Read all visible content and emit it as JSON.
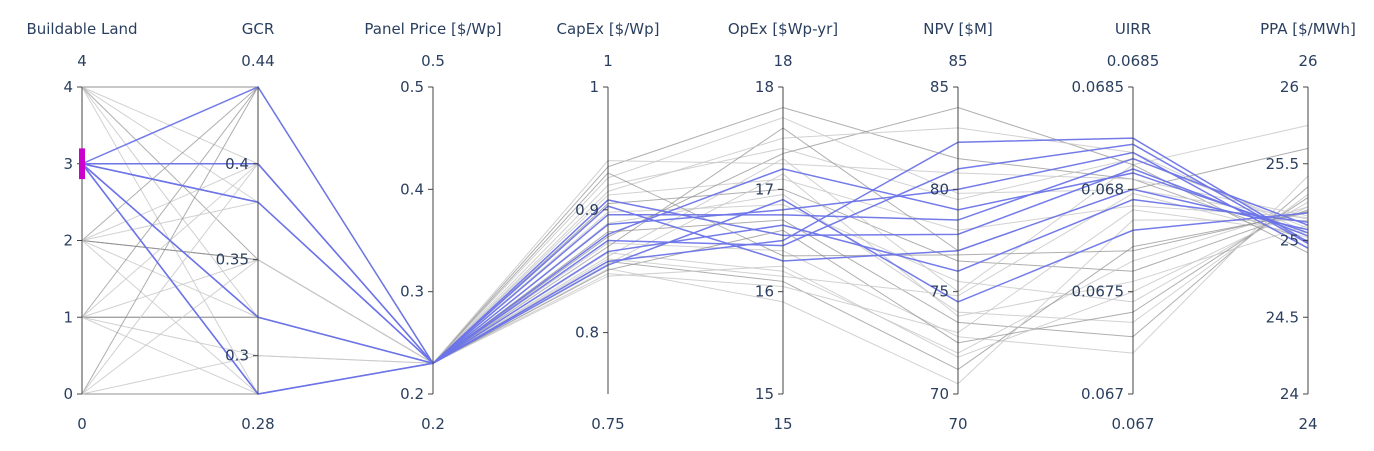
{
  "chart_data": {
    "type": "parallel_coordinates",
    "colors": {
      "selected": "#6b74e8",
      "unselected_light": "#c9c9c9",
      "unselected_dark": "#8c8c8c",
      "brush": "#cc00cc",
      "text": "#2a3f5f"
    },
    "dimensions": [
      {
        "id": "land",
        "label": "Buildable Land",
        "range": [
          0,
          4
        ],
        "range_labels": [
          "0",
          "4"
        ],
        "ticks": [
          0,
          1,
          2,
          3,
          4
        ],
        "tick_labels": [
          "0",
          "1",
          "2",
          "3",
          "4"
        ],
        "tick_side": "left",
        "brush": [
          2.8,
          3.2
        ]
      },
      {
        "id": "gcr",
        "label": "GCR",
        "range": [
          0.28,
          0.44
        ],
        "range_labels": [
          "0.28",
          "0.44"
        ],
        "ticks": [
          0.3,
          0.35,
          0.4
        ],
        "tick_labels": [
          "0.3",
          "0.35",
          "0.4"
        ],
        "tick_side": "left"
      },
      {
        "id": "price",
        "label": "Panel Price [$/Wp]",
        "range": [
          0.2,
          0.5
        ],
        "range_labels": [
          "0.2",
          "0.5"
        ],
        "ticks": [
          0.2,
          0.3,
          0.4,
          0.5
        ],
        "tick_labels": [
          "0.2",
          "0.3",
          "0.4",
          "0.5"
        ],
        "tick_side": "left"
      },
      {
        "id": "capex",
        "label": "CapEx [$/Wp]",
        "range": [
          0.75,
          1
        ],
        "range_labels": [
          "0.75",
          "1"
        ],
        "ticks": [
          0.8,
          0.9,
          1
        ],
        "tick_labels": [
          "0.8",
          "0.9",
          "1"
        ],
        "tick_side": "left"
      },
      {
        "id": "opex",
        "label": "OpEx [$Wp-yr]",
        "range": [
          15,
          18
        ],
        "range_labels": [
          "15",
          "18"
        ],
        "ticks": [
          15,
          16,
          17,
          18
        ],
        "tick_labels": [
          "15",
          "16",
          "17",
          "18"
        ],
        "tick_side": "left"
      },
      {
        "id": "npv",
        "label": "NPV [$M]",
        "range": [
          70,
          85
        ],
        "range_labels": [
          "70",
          "85"
        ],
        "ticks": [
          70,
          75,
          80,
          85
        ],
        "tick_labels": [
          "70",
          "75",
          "80",
          "85"
        ],
        "tick_side": "left"
      },
      {
        "id": "uirr",
        "label": "UIRR",
        "range": [
          0.067,
          0.0685
        ],
        "range_labels": [
          "0.067",
          "0.0685"
        ],
        "ticks": [
          0.067,
          0.0675,
          0.068,
          0.0685
        ],
        "tick_labels": [
          "0.067",
          "0.0675",
          "0.068",
          "0.0685"
        ],
        "tick_side": "left"
      },
      {
        "id": "ppa",
        "label": "PPA [$/MWh]",
        "range": [
          24,
          26
        ],
        "range_labels": [
          "24",
          "26"
        ],
        "ticks": [
          24,
          24.5,
          25,
          25.5,
          26
        ],
        "tick_labels": [
          "24",
          "24.5",
          "25",
          "25.5",
          "26"
        ],
        "tick_side": "left"
      }
    ],
    "lines": [
      {
        "values": [
          3,
          0.44,
          0.23,
          0.908,
          16.55,
          77.8,
          0.0681,
          25.03
        ],
        "selected": true
      },
      {
        "values": [
          3,
          0.4,
          0.23,
          0.903,
          16.3,
          77.0,
          0.068,
          25.07
        ],
        "selected": true
      },
      {
        "values": [
          3,
          0.38,
          0.23,
          0.896,
          16.75,
          78.5,
          0.06815,
          25.1
        ],
        "selected": true
      },
      {
        "values": [
          3,
          0.32,
          0.23,
          0.888,
          16.8,
          80.0,
          0.06818,
          24.95
        ],
        "selected": true
      },
      {
        "values": [
          3,
          0.28,
          0.23,
          0.875,
          16.45,
          81.0,
          0.06822,
          24.98
        ],
        "selected": true
      },
      {
        "values": [
          3,
          0.28,
          0.23,
          0.858,
          16.5,
          82.3,
          0.06825,
          24.99
        ],
        "selected": true
      },
      {
        "values": [
          3,
          0.32,
          0.23,
          0.866,
          16.65,
          76.0,
          0.06795,
          25.12
        ],
        "selected": true
      },
      {
        "values": [
          3,
          0.38,
          0.23,
          0.855,
          16.9,
          74.5,
          0.0678,
          25.18
        ],
        "selected": true
      },
      {
        "values": [
          3,
          0.4,
          0.23,
          0.88,
          17.2,
          79.0,
          0.06808,
          25.05
        ],
        "selected": true
      },
      {
        "values": [
          4,
          0.44,
          0.23,
          0.935,
          17.8,
          81.5,
          0.06805,
          25.0
        ],
        "selected": false
      },
      {
        "values": [
          4,
          0.4,
          0.23,
          0.92,
          17.4,
          79.5,
          0.06815,
          25.08
        ],
        "selected": false
      },
      {
        "values": [
          4,
          0.38,
          0.23,
          0.912,
          17.1,
          78.0,
          0.06792,
          25.15
        ],
        "selected": false
      },
      {
        "values": [
          4,
          0.35,
          0.23,
          0.905,
          17.0,
          76.5,
          0.0676,
          25.2
        ],
        "selected": false
      },
      {
        "values": [
          4,
          0.32,
          0.23,
          0.898,
          16.85,
          75.5,
          0.06745,
          25.25
        ],
        "selected": false
      },
      {
        "values": [
          4,
          0.28,
          0.23,
          0.889,
          16.95,
          74.0,
          0.06735,
          25.3
        ],
        "selected": false
      },
      {
        "values": [
          2,
          0.44,
          0.23,
          0.882,
          16.7,
          73.5,
          0.06728,
          25.35
        ],
        "selected": false
      },
      {
        "values": [
          2,
          0.4,
          0.23,
          0.873,
          16.4,
          72.8,
          0.0672,
          25.42
        ],
        "selected": false
      },
      {
        "values": [
          2,
          0.38,
          0.23,
          0.865,
          16.2,
          72.0,
          0.06765,
          25.22
        ],
        "selected": false
      },
      {
        "values": [
          2,
          0.35,
          0.23,
          0.858,
          16.1,
          71.2,
          0.06772,
          25.18
        ],
        "selected": false
      },
      {
        "values": [
          2,
          0.32,
          0.23,
          0.852,
          15.9,
          70.5,
          0.06785,
          25.13
        ],
        "selected": false
      },
      {
        "values": [
          2,
          0.28,
          0.23,
          0.848,
          16.05,
          73.0,
          0.0679,
          25.05
        ],
        "selected": false
      },
      {
        "values": [
          1,
          0.44,
          0.23,
          0.87,
          17.6,
          77.0,
          0.068,
          25.6
        ],
        "selected": false
      },
      {
        "values": [
          1,
          0.4,
          0.23,
          0.862,
          17.3,
          75.0,
          0.06812,
          25.75
        ],
        "selected": false
      },
      {
        "values": [
          1,
          0.35,
          0.23,
          0.856,
          17.15,
          73.8,
          0.06755,
          25.1
        ],
        "selected": false
      },
      {
        "values": [
          1,
          0.32,
          0.23,
          0.851,
          16.6,
          72.5,
          0.0674,
          25.28
        ],
        "selected": false
      },
      {
        "values": [
          1,
          0.3,
          0.23,
          0.846,
          16.25,
          71.8,
          0.0675,
          25.22
        ],
        "selected": false
      },
      {
        "values": [
          1,
          0.28,
          0.23,
          0.86,
          16.15,
          74.8,
          0.06798,
          25.02
        ],
        "selected": false
      },
      {
        "values": [
          0,
          0.44,
          0.23,
          0.878,
          17.35,
          84.0,
          0.06812,
          24.92
        ],
        "selected": false
      },
      {
        "values": [
          0,
          0.4,
          0.23,
          0.915,
          17.5,
          83.0,
          0.06818,
          25.05
        ],
        "selected": false
      },
      {
        "values": [
          0,
          0.35,
          0.23,
          0.926,
          17.7,
          79.8,
          0.068,
          25.14
        ],
        "selected": false
      },
      {
        "values": [
          0,
          0.28,
          0.23,
          0.93,
          16.35,
          76.8,
          0.0677,
          25.19
        ],
        "selected": false
      },
      {
        "values": [
          0,
          0.3,
          0.23,
          0.94,
          17.25,
          80.8,
          0.06805,
          25.16
        ],
        "selected": false
      }
    ]
  }
}
